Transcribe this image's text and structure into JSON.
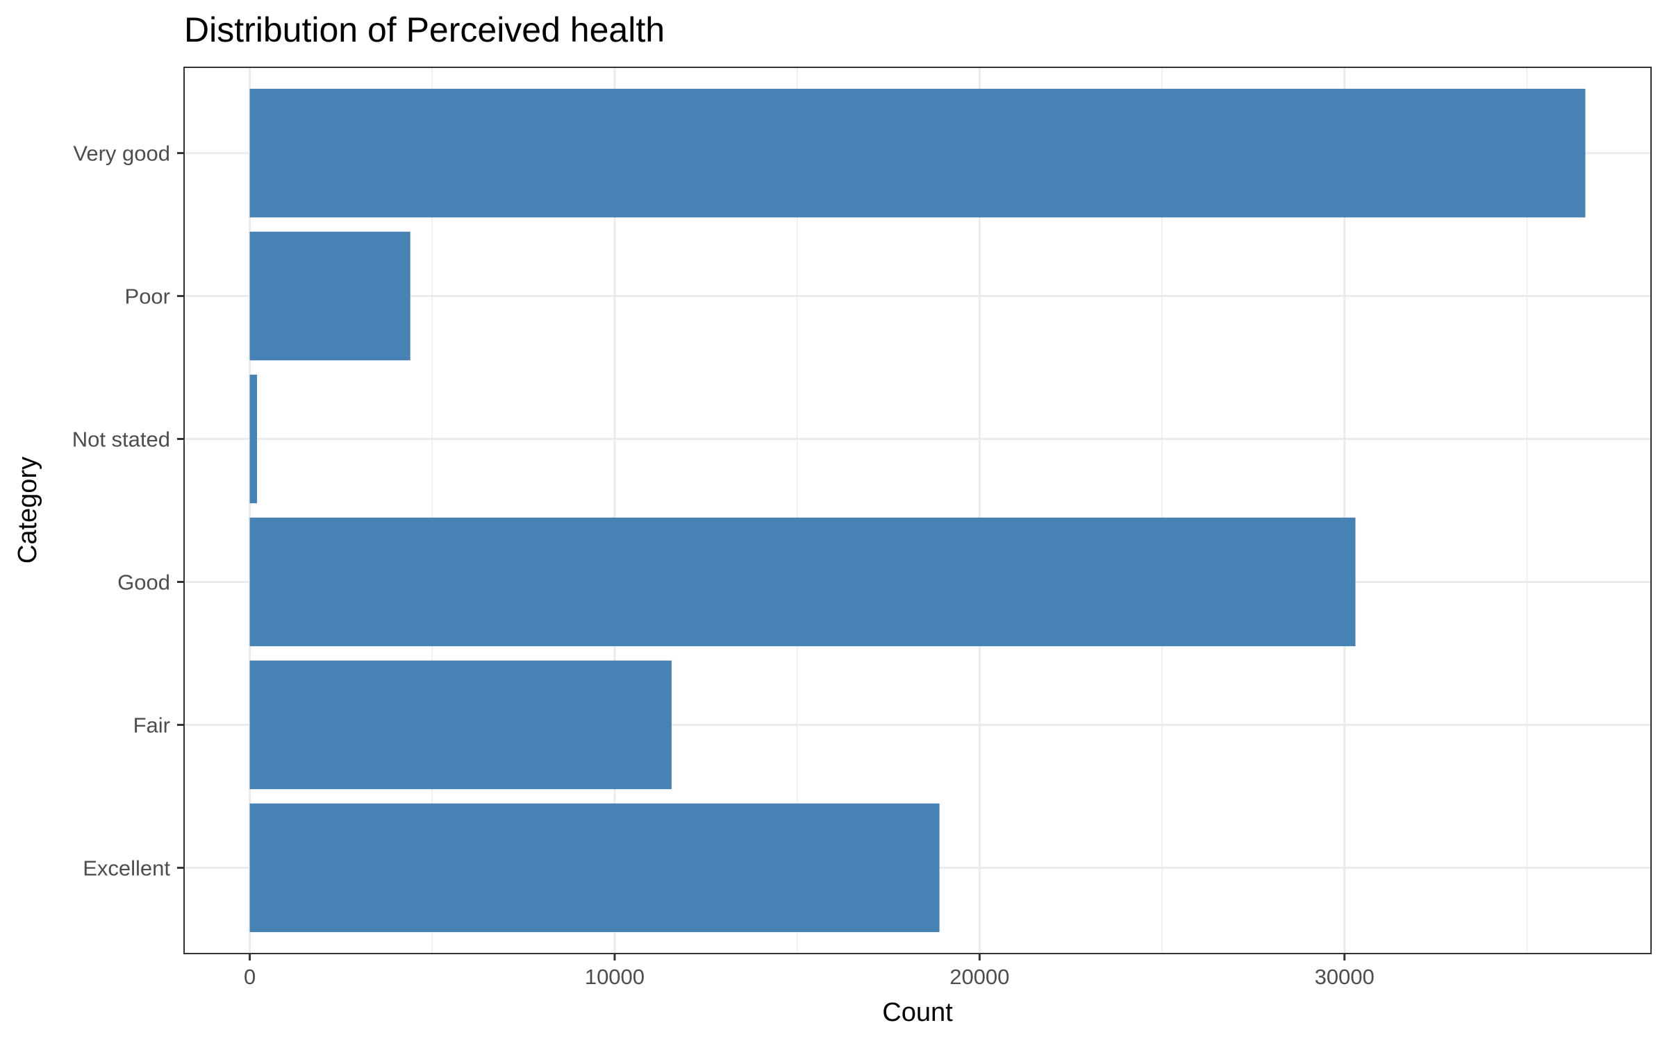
{
  "chart_data": {
    "type": "bar",
    "orientation": "horizontal",
    "title": "Distribution of Perceived health",
    "xlabel": "Count",
    "ylabel": "Category",
    "categories": [
      "Excellent",
      "Fair",
      "Good",
      "Not stated",
      "Poor",
      "Very good"
    ],
    "values": [
      18900,
      11560,
      30300,
      200,
      4400,
      36600
    ],
    "xlim": [
      -1800,
      38400
    ],
    "xticks": [
      0,
      10000,
      20000,
      30000
    ],
    "xtick_labels": [
      "0",
      "10000",
      "20000",
      "30000"
    ],
    "grid": true,
    "legend": "none",
    "bar_color": "#4682B4",
    "grid_color": "#EBEBEB",
    "panel_border_color": "#333333"
  }
}
